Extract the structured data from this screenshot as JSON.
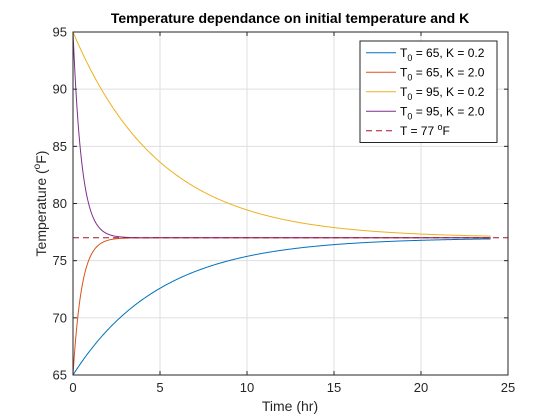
{
  "chart_data": {
    "type": "line",
    "title": "Temperature dependance on initial temperature and K",
    "xlabel": "Time (hr)",
    "ylabel": "Temperature (°F)",
    "ylabel_parts": {
      "a": "Temperature (",
      "sup": "o",
      "b": "F)"
    },
    "xlim": [
      0,
      25
    ],
    "ylim": [
      65,
      95
    ],
    "x_ticks": [
      0,
      5,
      10,
      15,
      20,
      25
    ],
    "y_ticks": [
      65,
      70,
      75,
      80,
      85,
      90,
      95
    ],
    "grid": true,
    "legend_position": "top-right",
    "x_range": [
      0,
      24
    ],
    "series": [
      {
        "name": "T0 = 65, K = 0.2",
        "label_parts": {
          "a": "T",
          "sub": "0",
          "b": " = 65, K = 0.2"
        },
        "T0": 65,
        "K": 0.2,
        "color": "#0072BD",
        "dash": ""
      },
      {
        "name": "T0 = 65, K = 2.0",
        "label_parts": {
          "a": "T",
          "sub": "0",
          "b": " = 65, K = 2.0"
        },
        "T0": 65,
        "K": 2.0,
        "color": "#D95319",
        "dash": ""
      },
      {
        "name": "T0 = 95, K = 0.2",
        "label_parts": {
          "a": "T",
          "sub": "0",
          "b": " = 95, K = 0.2"
        },
        "T0": 95,
        "K": 0.2,
        "color": "#EDB120",
        "dash": ""
      },
      {
        "name": "T0 = 95, K = 2.0",
        "label_parts": {
          "a": "T",
          "sub": "0",
          "b": " = 95, K = 2.0"
        },
        "T0": 95,
        "K": 2.0,
        "color": "#7E2F8E",
        "dash": ""
      },
      {
        "name": "T = 77 °F",
        "label_parts": {
          "a": "T = 77 ",
          "sup": "o",
          "b": "F"
        },
        "constant": 77,
        "color": "#A2142F",
        "dash": "6,4"
      }
    ],
    "equilibrium": 77
  }
}
